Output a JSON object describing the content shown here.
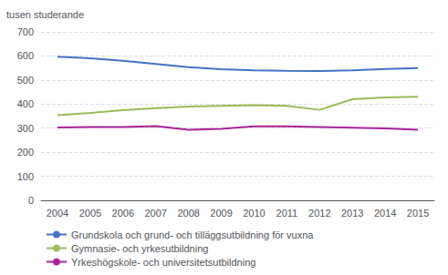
{
  "chart_data": {
    "type": "line",
    "ylabel": "tusen studerande",
    "categories": [
      "2004",
      "2005",
      "2006",
      "2007",
      "2008",
      "2009",
      "2010",
      "2011",
      "2012",
      "2013",
      "2014",
      "2015"
    ],
    "series": [
      {
        "name": "Grundskola och grund- och tilläggsutbildning för vuxna",
        "color": "#4472C4",
        "values": [
          597,
          590,
          580,
          567,
          553,
          545,
          540,
          538,
          537,
          540,
          546,
          550
        ]
      },
      {
        "name": "Gymnasie- och yrkesutbildning",
        "color": "#9BBB59",
        "values": [
          354,
          363,
          375,
          383,
          390,
          393,
          395,
          393,
          376,
          420,
          428,
          430
        ]
      },
      {
        "name": "Yrkeshögskole- och universitetsutbildning",
        "color": "#AA2299",
        "values": [
          303,
          305,
          305,
          308,
          293,
          297,
          307,
          307,
          305,
          302,
          299,
          293
        ]
      }
    ],
    "ylim": [
      0,
      700
    ],
    "yticks": [
      0,
      100,
      200,
      300,
      400,
      500,
      600,
      700
    ],
    "grid": true,
    "legend": "bottom"
  }
}
